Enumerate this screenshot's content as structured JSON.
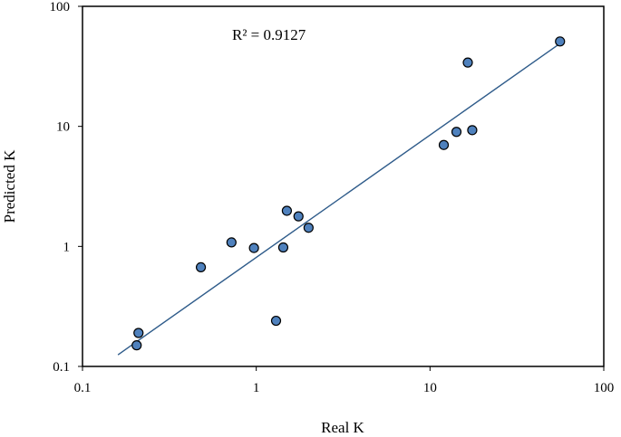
{
  "chart_data": {
    "type": "scatter",
    "title": "",
    "xlabel": "Real K",
    "ylabel": "Predicted K",
    "x_scale": "log",
    "y_scale": "log",
    "xlim": [
      0.1,
      100
    ],
    "ylim": [
      0.1,
      100
    ],
    "x_ticks": [
      "0.1",
      "1",
      "10",
      "100"
    ],
    "y_ticks": [
      "0.1",
      "1",
      "10",
      "100"
    ],
    "grid": false,
    "legend": "none",
    "annotation": "R² = 0.9127",
    "series": [
      {
        "points": [
          {
            "x": 0.205,
            "y": 0.15
          },
          {
            "x": 0.21,
            "y": 0.19
          },
          {
            "x": 0.48,
            "y": 0.67
          },
          {
            "x": 0.72,
            "y": 1.08
          },
          {
            "x": 0.97,
            "y": 0.97
          },
          {
            "x": 1.3,
            "y": 0.24
          },
          {
            "x": 1.43,
            "y": 0.98
          },
          {
            "x": 1.5,
            "y": 1.98
          },
          {
            "x": 1.75,
            "y": 1.78
          },
          {
            "x": 2.0,
            "y": 1.43
          },
          {
            "x": 12.0,
            "y": 7.0
          },
          {
            "x": 14.2,
            "y": 9.0
          },
          {
            "x": 16.5,
            "y": 34.0
          },
          {
            "x": 17.5,
            "y": 9.3
          },
          {
            "x": 56.0,
            "y": 51.0
          }
        ],
        "marker_color": "#4f81bd",
        "marker_edge": "#000000"
      }
    ],
    "trendline": {
      "x": [
        0.16,
        56.0
      ],
      "y": [
        0.125,
        49.0
      ],
      "color": "#2e5b8a"
    }
  }
}
